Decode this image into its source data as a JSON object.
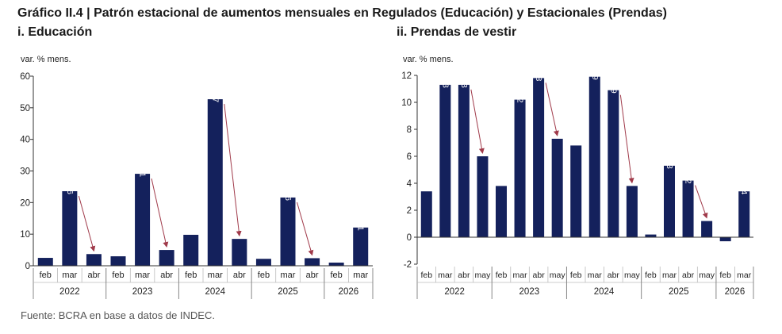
{
  "title": "Gráfico II.4 | Patrón estacional de aumentos mensuales en Regulados (Educación) y Estacionales (Prendas)",
  "source": "Fuente: BCRA en base a datos de INDEC.",
  "colors": {
    "bar": "#14215c",
    "arrow": "#a03a4a",
    "axis": "#333333",
    "label_text": "#ffffff"
  },
  "chart_data": [
    {
      "type": "bar",
      "title": "i. Educación",
      "ylabel": "var. % mens.",
      "ylim": [
        0,
        60
      ],
      "yticks": [
        0,
        10,
        20,
        30,
        40,
        50,
        60
      ],
      "categories": [
        "feb",
        "mar",
        "abr",
        "feb",
        "mar",
        "abr",
        "feb",
        "mar",
        "abr",
        "feb",
        "mar",
        "abr",
        "feb",
        "mar"
      ],
      "groups": [
        {
          "label": "2022",
          "count": 3
        },
        {
          "label": "2023",
          "count": 3
        },
        {
          "label": "2024",
          "count": 3
        },
        {
          "label": "2025",
          "count": 3
        },
        {
          "label": "2026",
          "count": 2
        }
      ],
      "values": [
        2.5,
        23.6,
        3.7,
        3.0,
        29.1,
        5.0,
        9.8,
        52.7,
        8.5,
        2.2,
        21.6,
        2.4,
        1.0,
        12.1
      ],
      "data_labels": [
        "",
        "23,6",
        "",
        "",
        "29,1",
        "",
        "",
        "52,7",
        "",
        "",
        "21,6",
        "",
        "",
        "12,1"
      ],
      "arrows": [
        [
          1,
          2
        ],
        [
          4,
          5
        ],
        [
          7,
          8
        ],
        [
          10,
          11
        ]
      ],
      "grid": false
    },
    {
      "type": "bar",
      "title": "ii. Prendas de vestir",
      "ylabel": "var. % mens.",
      "ylim": [
        -2,
        12
      ],
      "yticks": [
        -2,
        0,
        2,
        4,
        6,
        8,
        10,
        12
      ],
      "categories": [
        "feb",
        "mar",
        "abr",
        "may",
        "feb",
        "mar",
        "abr",
        "may",
        "feb",
        "mar",
        "abr",
        "may",
        "feb",
        "mar",
        "abr",
        "may",
        "feb",
        "mar"
      ],
      "groups": [
        {
          "label": "2022",
          "count": 4
        },
        {
          "label": "2023",
          "count": 4
        },
        {
          "label": "2024",
          "count": 4
        },
        {
          "label": "2025",
          "count": 4
        },
        {
          "label": "2026",
          "count": 2
        }
      ],
      "values": [
        3.4,
        11.3,
        11.3,
        6.0,
        3.8,
        10.2,
        11.8,
        7.3,
        6.8,
        11.9,
        10.9,
        3.8,
        0.2,
        5.3,
        4.2,
        1.2,
        -0.3,
        3.4
      ],
      "data_labels": [
        "",
        "11,3",
        "11,3",
        "",
        "",
        "10,2",
        "11,8",
        "",
        "",
        "11,9",
        "10,9",
        "",
        "",
        "5,3",
        "4,2",
        "",
        "",
        "3,4"
      ],
      "arrows": [
        [
          2,
          3
        ],
        [
          6,
          7
        ],
        [
          10,
          11
        ],
        [
          14,
          15
        ]
      ],
      "grid": false
    }
  ]
}
